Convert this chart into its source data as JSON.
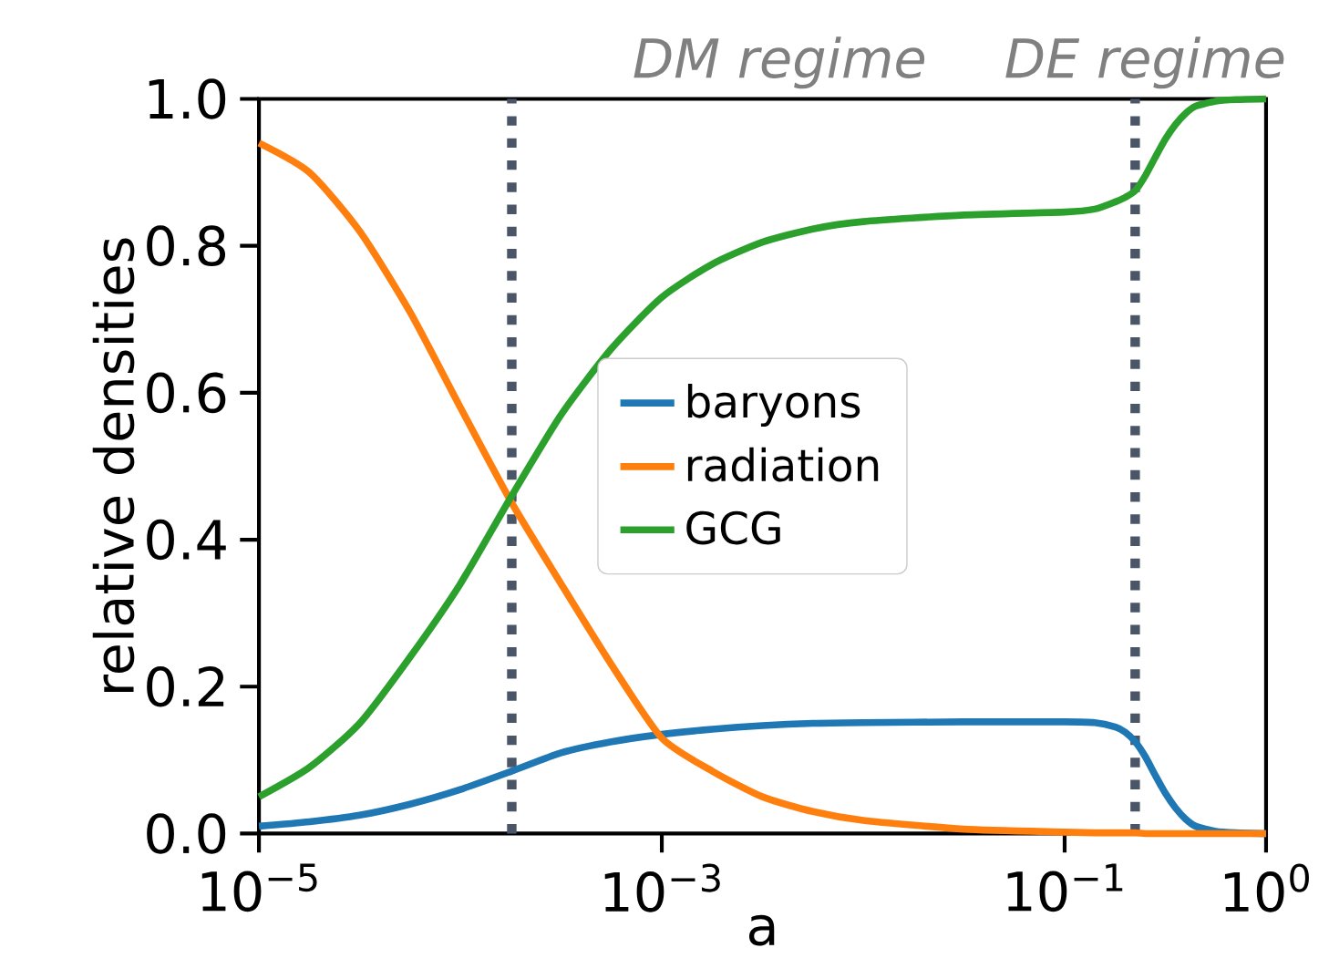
{
  "chart_data": {
    "type": "line",
    "xlabel": "a",
    "ylabel": "relative densities",
    "annotations": [
      "DM regime",
      "DE regime"
    ],
    "x": [
      1e-05,
      1.78e-05,
      3.16e-05,
      5.62e-05,
      0.0001,
      0.00018,
      0.000316,
      0.000562,
      0.001,
      0.00178,
      0.00316,
      0.00562,
      0.01,
      0.0316,
      0.1,
      0.141,
      0.179,
      0.2,
      0.224,
      0.251,
      0.281,
      0.316,
      0.355,
      0.398,
      0.447,
      0.562,
      0.708,
      1.0
    ],
    "series": [
      {
        "name": "baryons",
        "color": "#1f77b4",
        "values": [
          0.01,
          0.016,
          0.025,
          0.04,
          0.06,
          0.085,
          0.11,
          0.125,
          0.135,
          0.142,
          0.147,
          0.15,
          0.151,
          0.152,
          0.152,
          0.151,
          0.145,
          0.138,
          0.125,
          0.105,
          0.08,
          0.055,
          0.035,
          0.02,
          0.01,
          0.003,
          0.001,
          0.0
        ]
      },
      {
        "name": "radiation",
        "color": "#ff7f0e",
        "values": [
          0.94,
          0.9,
          0.82,
          0.71,
          0.58,
          0.45,
          0.34,
          0.23,
          0.13,
          0.085,
          0.05,
          0.03,
          0.018,
          0.006,
          0.002,
          0.001,
          0.001,
          0.001,
          0.001,
          0.0,
          0.0,
          0.0,
          0.0,
          0.0,
          0.0,
          0.0,
          0.0,
          0.0
        ]
      },
      {
        "name": "GCG",
        "color": "#2ca02c",
        "values": [
          0.05,
          0.09,
          0.15,
          0.24,
          0.34,
          0.46,
          0.57,
          0.66,
          0.73,
          0.775,
          0.805,
          0.823,
          0.833,
          0.842,
          0.846,
          0.85,
          0.86,
          0.866,
          0.875,
          0.895,
          0.92,
          0.945,
          0.965,
          0.98,
          0.99,
          0.997,
          0.999,
          1.0
        ]
      }
    ],
    "log": "x",
    "xlim": [
      1e-05,
      1
    ],
    "ylim": [
      0,
      1
    ],
    "xticks": [
      {
        "value": 1e-05,
        "label": "10$^{−5}$"
      },
      {
        "value": 0.001,
        "label": "10$^{−3}$"
      },
      {
        "value": 0.1,
        "label": "10$^{−1}$"
      },
      {
        "value": 1,
        "label": "10$^{0}$"
      }
    ],
    "yticks": [
      {
        "value": 0,
        "label": "0.0"
      },
      {
        "value": 0.2,
        "label": "0.2"
      },
      {
        "value": 0.4,
        "label": "0.4"
      },
      {
        "value": 0.6,
        "label": "0.6"
      },
      {
        "value": 0.8,
        "label": "0.8"
      },
      {
        "value": 1,
        "label": "1.0"
      }
    ],
    "ref_lines": [
      {
        "axis": "x",
        "value": 0.00018,
        "color": "#4a5568",
        "line_style": "dotted"
      },
      {
        "axis": "x",
        "value": 0.224,
        "color": "#4a5568",
        "line_style": "dotted"
      }
    ],
    "legend": "center",
    "grid": false,
    "marker": "none",
    "line_style": "solid"
  }
}
